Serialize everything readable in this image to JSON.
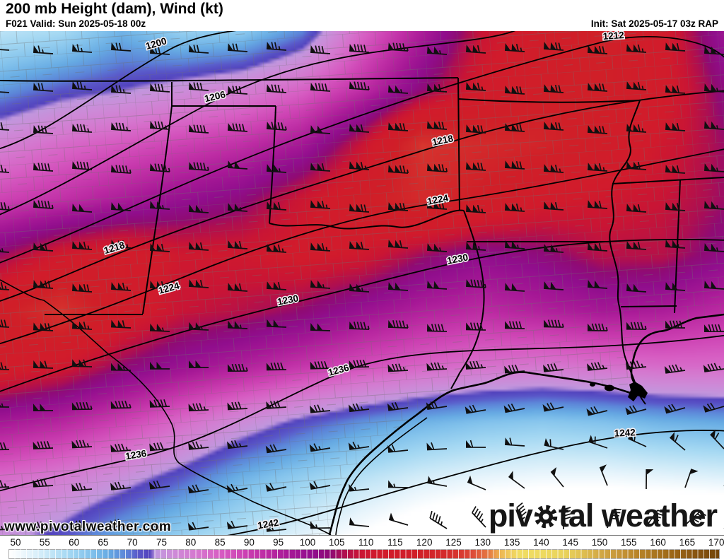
{
  "header": {
    "title": "200 mb Height (dam), Wind (kt)",
    "valid": "F021 Valid: Sun 2025-05-18 00z",
    "init": "Init: Sat 2025-05-17 03z RAP"
  },
  "watermark": "www.pivotalweather.com",
  "logo": {
    "pre": "piv",
    "post": "tal weather"
  },
  "colorbar": {
    "unit": "kt",
    "min": 50,
    "max": 171.3,
    "ticks": [
      50,
      55,
      60,
      65,
      70,
      75,
      80,
      85,
      90,
      95,
      100,
      105,
      110,
      115,
      120,
      125,
      130,
      135,
      140,
      145,
      150,
      155,
      160,
      165,
      170
    ],
    "stops": [
      [
        50,
        "#ffffff"
      ],
      [
        53,
        "#e8f5fc"
      ],
      [
        56,
        "#cdeaf8"
      ],
      [
        60,
        "#a6d9f3"
      ],
      [
        64,
        "#82c2ec"
      ],
      [
        67,
        "#66aae3"
      ],
      [
        70,
        "#5c84d8"
      ],
      [
        72,
        "#5a58c9"
      ],
      [
        74,
        "#5242bd"
      ],
      [
        75,
        "#c098de"
      ],
      [
        78,
        "#cd8bd8"
      ],
      [
        82,
        "#d578cf"
      ],
      [
        86,
        "#d75ec3"
      ],
      [
        90,
        "#cd42b3"
      ],
      [
        94,
        "#bc2ba3"
      ],
      [
        98,
        "#a61896"
      ],
      [
        102,
        "#900e8d"
      ],
      [
        105,
        "#8f0b74"
      ],
      [
        107,
        "#ad0f52"
      ],
      [
        110,
        "#c91535"
      ],
      [
        113,
        "#d11b2c"
      ],
      [
        120,
        "#d01f28"
      ],
      [
        126,
        "#d5302d"
      ],
      [
        129,
        "#dc4937"
      ],
      [
        132,
        "#e57a42"
      ],
      [
        134,
        "#eeb853"
      ],
      [
        137,
        "#f0dc64"
      ],
      [
        141,
        "#eeda60"
      ],
      [
        145,
        "#e9d25b"
      ],
      [
        148,
        "#dfbf51"
      ],
      [
        151,
        "#d2a845"
      ],
      [
        154,
        "#c79739"
      ],
      [
        157,
        "#ba862a"
      ],
      [
        160,
        "#ab7720"
      ],
      [
        163,
        "#9e6817"
      ],
      [
        166,
        "#8f5a12"
      ],
      [
        169,
        "#7f4e0f"
      ],
      [
        171,
        "#744609"
      ]
    ]
  },
  "map": {
    "contour_unit": "dam",
    "contours": [
      {
        "value": "1200",
        "labels": [
          [
            222,
            22,
            -16
          ]
        ]
      },
      {
        "value": "1206",
        "labels": [
          [
            305,
            97,
            -13
          ]
        ]
      },
      {
        "value": "1212",
        "labels": [
          [
            868,
            11,
            -4
          ]
        ]
      },
      {
        "value": "1218",
        "labels": [
          [
            163,
            311,
            -17
          ],
          [
            627,
            159,
            -12
          ]
        ]
      },
      {
        "value": "1224",
        "labels": [
          [
            240,
            368,
            -15
          ],
          [
            620,
            243,
            -11
          ]
        ]
      },
      {
        "value": "1230",
        "labels": [
          [
            408,
            385,
            -11
          ],
          [
            648,
            327,
            -11
          ]
        ]
      },
      {
        "value": "1236",
        "labels": [
          [
            193,
            604,
            -9
          ],
          [
            480,
            484,
            -15
          ]
        ]
      },
      {
        "value": "1242",
        "labels": [
          [
            380,
            702,
            -9
          ],
          [
            884,
            573,
            -3
          ]
        ]
      }
    ]
  },
  "chart_data": {
    "type": "heatmap",
    "title": "200 mb Height (dam), Wind (kt)",
    "shading_units": "kt",
    "contour_units": "dam",
    "contour_values": [
      1200,
      1206,
      1212,
      1218,
      1224,
      1230,
      1236,
      1242
    ],
    "wind_speed_grid": {
      "cols": 13,
      "rows": 10,
      "x_range": [
        0,
        1024
      ],
      "y_range": [
        0,
        713
      ],
      "values": [
        [
          58,
          60,
          66,
          62,
          63,
          70,
          85,
          97,
          110,
          117,
          121,
          114,
          100
        ],
        [
          68,
          72,
          74,
          77,
          80,
          85,
          93,
          104,
          114,
          119,
          120,
          115,
          104
        ],
        [
          80,
          84,
          87,
          90,
          93,
          98,
          110,
          127,
          124,
          122,
          118,
          112,
          106
        ],
        [
          90,
          93,
          97,
          101,
          104,
          111,
          119,
          124,
          119,
          114,
          112,
          110,
          106
        ],
        [
          106,
          113,
          116,
          112,
          112,
          114,
          112,
          106,
          102,
          104,
          108,
          108,
          103
        ],
        [
          119,
          127,
          116,
          110,
          108,
          105,
          100,
          96,
          94,
          96,
          98,
          97,
          94
        ],
        [
          116,
          112,
          105,
          100,
          96,
          92,
          88,
          85,
          83,
          82,
          83,
          84,
          84
        ],
        [
          98,
          95,
          90,
          84,
          78,
          73,
          69,
          66,
          64,
          63,
          64,
          66,
          67
        ],
        [
          84,
          81,
          77,
          72,
          66,
          62,
          58,
          55,
          53,
          52,
          52,
          53,
          54
        ],
        [
          77,
          73,
          67,
          62,
          58,
          54,
          50,
          46,
          43,
          41,
          40,
          40,
          40
        ]
      ]
    },
    "wind_dir_grid": {
      "cols": 13,
      "rows": 10,
      "values": [
        [
          274,
          274,
          274,
          274,
          274,
          274,
          274,
          274,
          274,
          274,
          274,
          274,
          274
        ],
        [
          274,
          274,
          274,
          274,
          274,
          274,
          274,
          274,
          274,
          274,
          274,
          274,
          274
        ],
        [
          274,
          274,
          274,
          274,
          274,
          274,
          274,
          274,
          274,
          274,
          274,
          274,
          274
        ],
        [
          274,
          274,
          274,
          274,
          274,
          274,
          274,
          274,
          274,
          274,
          274,
          274,
          274
        ],
        [
          274,
          274,
          274,
          274,
          274,
          274,
          274,
          274,
          274,
          274,
          274,
          274,
          274
        ],
        [
          274,
          274,
          274,
          274,
          274,
          274,
          274,
          274,
          274,
          274,
          274,
          274,
          274
        ],
        [
          272,
          272,
          271,
          270,
          270,
          269,
          268,
          267,
          266,
          265,
          264,
          263,
          262
        ],
        [
          270,
          269,
          268,
          267,
          266,
          264,
          262,
          260,
          258,
          256,
          254,
          252,
          250
        ],
        [
          268,
          266,
          264,
          262,
          259,
          256,
          260,
          270,
          285,
          305,
          330,
          360,
          395
        ],
        [
          268,
          266,
          264,
          263,
          262,
          266,
          276,
          295,
          320,
          355,
          385,
          410,
          425
        ]
      ]
    },
    "barb_grid": {
      "x0": 16,
      "dx": 56,
      "y0": 30,
      "dy": 56,
      "cols": 19,
      "rows": 13
    }
  }
}
